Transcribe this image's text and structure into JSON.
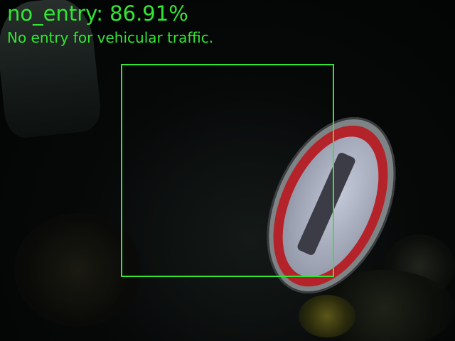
{
  "detection": {
    "label": "no_entry: 86.91%",
    "description": "No entry for vehicular traffic.",
    "class_name": "no_entry",
    "confidence_percent": 86.91,
    "box_color": "#33e633",
    "text_color": "#33e633"
  },
  "scene": {
    "sign_ring_color": "#b4222a",
    "sign_face_color": "#c2c8d6"
  }
}
